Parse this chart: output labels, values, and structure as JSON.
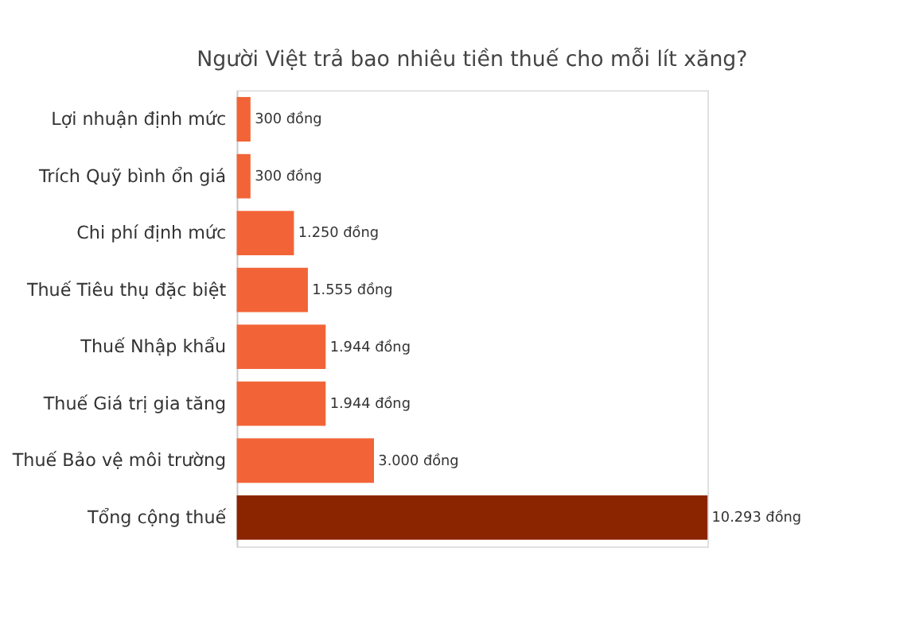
{
  "chart_data": {
    "type": "bar",
    "orientation": "horizontal",
    "title": "Người Việt trả bao nhiêu tiền thuế cho mỗi lít xăng?",
    "categories": [
      "Lợi nhuận định mức",
      "Trích Quỹ bình ổn giá",
      "Chi phí định mức",
      "Thuế Tiêu thụ đặc biệt",
      "Thuế Nhập khẩu",
      "Thuế Giá trị gia tăng",
      "Thuế Bảo vệ môi trường",
      "Tổng cộng thuế"
    ],
    "values": [
      300,
      300,
      1250,
      1555,
      1944,
      1944,
      3000,
      10293
    ],
    "colors": [
      "#f26437",
      "#f26437",
      "#f26437",
      "#f26437",
      "#f26437",
      "#f26437",
      "#f26437",
      "#8b2500"
    ],
    "value_labels": [
      "300 đồng",
      "300 đồng",
      "1.250 đồng",
      "1.555 đồng",
      "1.944 đồng",
      "1.944 đồng",
      "3.000 đồng",
      "10.293 đồng"
    ],
    "grid": false
  }
}
